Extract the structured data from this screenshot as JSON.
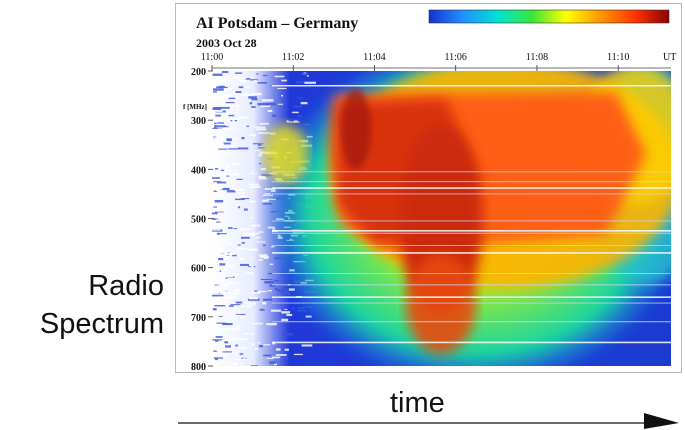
{
  "side_label": {
    "line1": "Radio",
    "line2": "Spectrum"
  },
  "time_label": "time",
  "chart_data": {
    "type": "heatmap",
    "title": "AI Potsdam – Germany",
    "subtitle": "2003 Oct 28",
    "x_unit": "UT",
    "y_unit": "f [MHz]",
    "x_ticks": [
      "11:00",
      "11:02",
      "11:04",
      "11:06",
      "11:08",
      "11:10"
    ],
    "x_tick_minutes": [
      0,
      2,
      4,
      6,
      8,
      10
    ],
    "xlim_minutes_after_1100": [
      0,
      11.3
    ],
    "y_ticks": [
      200,
      300,
      400,
      500,
      600,
      700,
      800
    ],
    "ylim": [
      200,
      800
    ],
    "colorbar": [
      "#1a2fd0",
      "#1e90ff",
      "#00e5d0",
      "#39e639",
      "#ffff00",
      "#ff9900",
      "#ff3300",
      "#8b0000"
    ],
    "colors": {
      "background": "#1b3bd0",
      "emission_core": "#d12a10"
    }
  }
}
